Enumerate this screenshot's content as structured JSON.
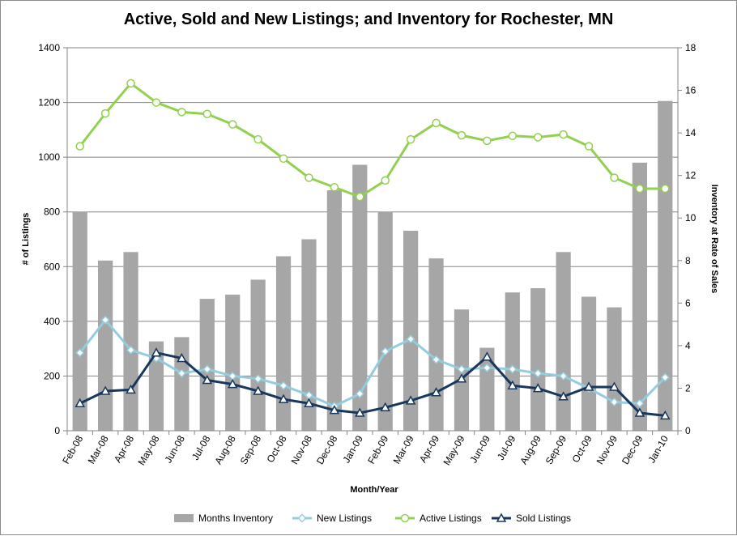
{
  "chart_data": {
    "type": "bar",
    "title": "Active, Sold and New Listings; and Inventory for Rochester, MN",
    "xlabel": "Month/Year",
    "ylabel": "# of Listings",
    "y2label": "Inventory at Rate of Sales",
    "ylim": [
      0,
      1400
    ],
    "y2lim": [
      0,
      18
    ],
    "yticks": [
      0,
      200,
      400,
      600,
      800,
      1000,
      1200,
      1400
    ],
    "y2ticks": [
      0,
      2,
      4,
      6,
      8,
      10,
      12,
      14,
      16,
      18
    ],
    "grid": true,
    "legend": "bottom",
    "categories": [
      "Feb-08",
      "Mar-08",
      "Apr-08",
      "May-08",
      "Jun-08",
      "Jul-08",
      "Aug-08",
      "Sep-08",
      "Oct-08",
      "Nov-08",
      "Dec-08",
      "Jan-09",
      "Feb-09",
      "Mar-09",
      "Apr-09",
      "May-09",
      "Jun-09",
      "Jul-09",
      "Aug-09",
      "Sep-09",
      "Oct-09",
      "Nov-09",
      "Dec-09",
      "Jan-10"
    ],
    "series": [
      {
        "name": "Months Inventory",
        "kind": "bar",
        "axis": "right",
        "color": "#a6a6a6",
        "values": [
          10.3,
          8.0,
          8.4,
          4.2,
          4.4,
          6.2,
          6.4,
          7.1,
          8.2,
          9.0,
          11.3,
          12.5,
          10.3,
          9.4,
          8.1,
          5.7,
          3.9,
          6.5,
          6.7,
          8.4,
          6.3,
          5.8,
          12.6,
          15.5
        ]
      },
      {
        "name": "New Listings",
        "kind": "line",
        "axis": "left",
        "color": "#93cddd",
        "marker": "diamond",
        "values": [
          285,
          405,
          295,
          265,
          210,
          225,
          200,
          190,
          165,
          130,
          90,
          135,
          290,
          335,
          260,
          225,
          230,
          225,
          210,
          200,
          155,
          105,
          100,
          195
        ]
      },
      {
        "name": "Active Listings",
        "kind": "line",
        "axis": "left",
        "color": "#92d050",
        "marker": "circle",
        "values": [
          1040,
          1160,
          1270,
          1200,
          1165,
          1158,
          1120,
          1065,
          995,
          925,
          890,
          855,
          915,
          1065,
          1125,
          1080,
          1060,
          1078,
          1073,
          1083,
          1040,
          925,
          885,
          885
        ]
      },
      {
        "name": "Sold Listings",
        "kind": "line",
        "axis": "left",
        "color": "#17375e",
        "marker": "triangle",
        "values": [
          100,
          145,
          150,
          285,
          265,
          185,
          170,
          145,
          115,
          100,
          75,
          65,
          85,
          110,
          140,
          190,
          270,
          165,
          155,
          125,
          160,
          160,
          65,
          55
        ]
      }
    ]
  }
}
